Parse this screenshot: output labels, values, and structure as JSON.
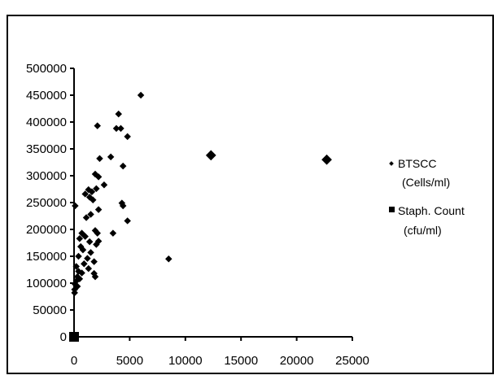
{
  "chart_data": {
    "type": "scatter",
    "title": "",
    "xlabel": "",
    "ylabel": "",
    "xlim": [
      0,
      25000
    ],
    "ylim": [
      0,
      500000
    ],
    "x_ticks": [
      0,
      5000,
      10000,
      15000,
      20000,
      25000
    ],
    "x_tick_labels": [
      "0",
      "5000",
      "10000",
      "15000",
      "20000",
      "25000"
    ],
    "y_ticks": [
      0,
      50000,
      100000,
      150000,
      200000,
      250000,
      300000,
      350000,
      400000,
      450000,
      500000
    ],
    "y_tick_labels": [
      "0",
      "50000",
      "100000",
      "150000",
      "200000",
      "250000",
      "300000",
      "350000",
      "400000",
      "450000",
      "500000"
    ],
    "grid": false,
    "legend_position": "right",
    "series": [
      {
        "name": "BTSCC (Cells/ml)",
        "legend_lines": [
          "BTSCC",
          "(Cells/ml)"
        ],
        "marker": "diamond",
        "color": "#000000",
        "points": [
          [
            6000,
            450000
          ],
          [
            4000,
            415000
          ],
          [
            2100,
            393000
          ],
          [
            3800,
            388000
          ],
          [
            4200,
            388000
          ],
          [
            4800,
            373000
          ],
          [
            3300,
            335000
          ],
          [
            2300,
            332000
          ],
          [
            4400,
            318000
          ],
          [
            1900,
            303000
          ],
          [
            2200,
            298000
          ],
          [
            2700,
            283000
          ],
          [
            1300,
            274000
          ],
          [
            1600,
            270000
          ],
          [
            1000,
            266000
          ],
          [
            2000,
            276000
          ],
          [
            1400,
            260000
          ],
          [
            1700,
            255000
          ],
          [
            4300,
            249000
          ],
          [
            4400,
            244000
          ],
          [
            100,
            244000
          ],
          [
            1500,
            228000
          ],
          [
            2200,
            237000
          ],
          [
            1100,
            222000
          ],
          [
            4800,
            216000
          ],
          [
            1900,
            198000
          ],
          [
            2100,
            193000
          ],
          [
            3500,
            193000
          ],
          [
            700,
            193000
          ],
          [
            1000,
            187000
          ],
          [
            500,
            183000
          ],
          [
            1400,
            177000
          ],
          [
            2000,
            172000
          ],
          [
            2200,
            178000
          ],
          [
            600,
            168000
          ],
          [
            800,
            162000
          ],
          [
            1500,
            157000
          ],
          [
            400,
            150000
          ],
          [
            1200,
            146000
          ],
          [
            1800,
            140000
          ],
          [
            900,
            136000
          ],
          [
            200,
            131000
          ],
          [
            1300,
            127000
          ],
          [
            400,
            122000
          ],
          [
            700,
            119000
          ],
          [
            1800,
            118000
          ],
          [
            1900,
            112000
          ],
          [
            300,
            112000
          ],
          [
            500,
            108000
          ],
          [
            200,
            104000
          ],
          [
            100,
            98000
          ],
          [
            300,
            94000
          ],
          [
            50,
            88000
          ],
          [
            50,
            82000
          ],
          [
            8500,
            145000
          ],
          [
            12300,
            338000
          ],
          [
            22700,
            330000
          ]
        ]
      },
      {
        "name": "Staph. Count (cfu/ml)",
        "legend_lines": [
          "Staph. Count",
          "(cfu/ml)"
        ],
        "marker": "square",
        "color": "#000000",
        "points": [
          [
            0,
            0
          ]
        ]
      }
    ]
  }
}
